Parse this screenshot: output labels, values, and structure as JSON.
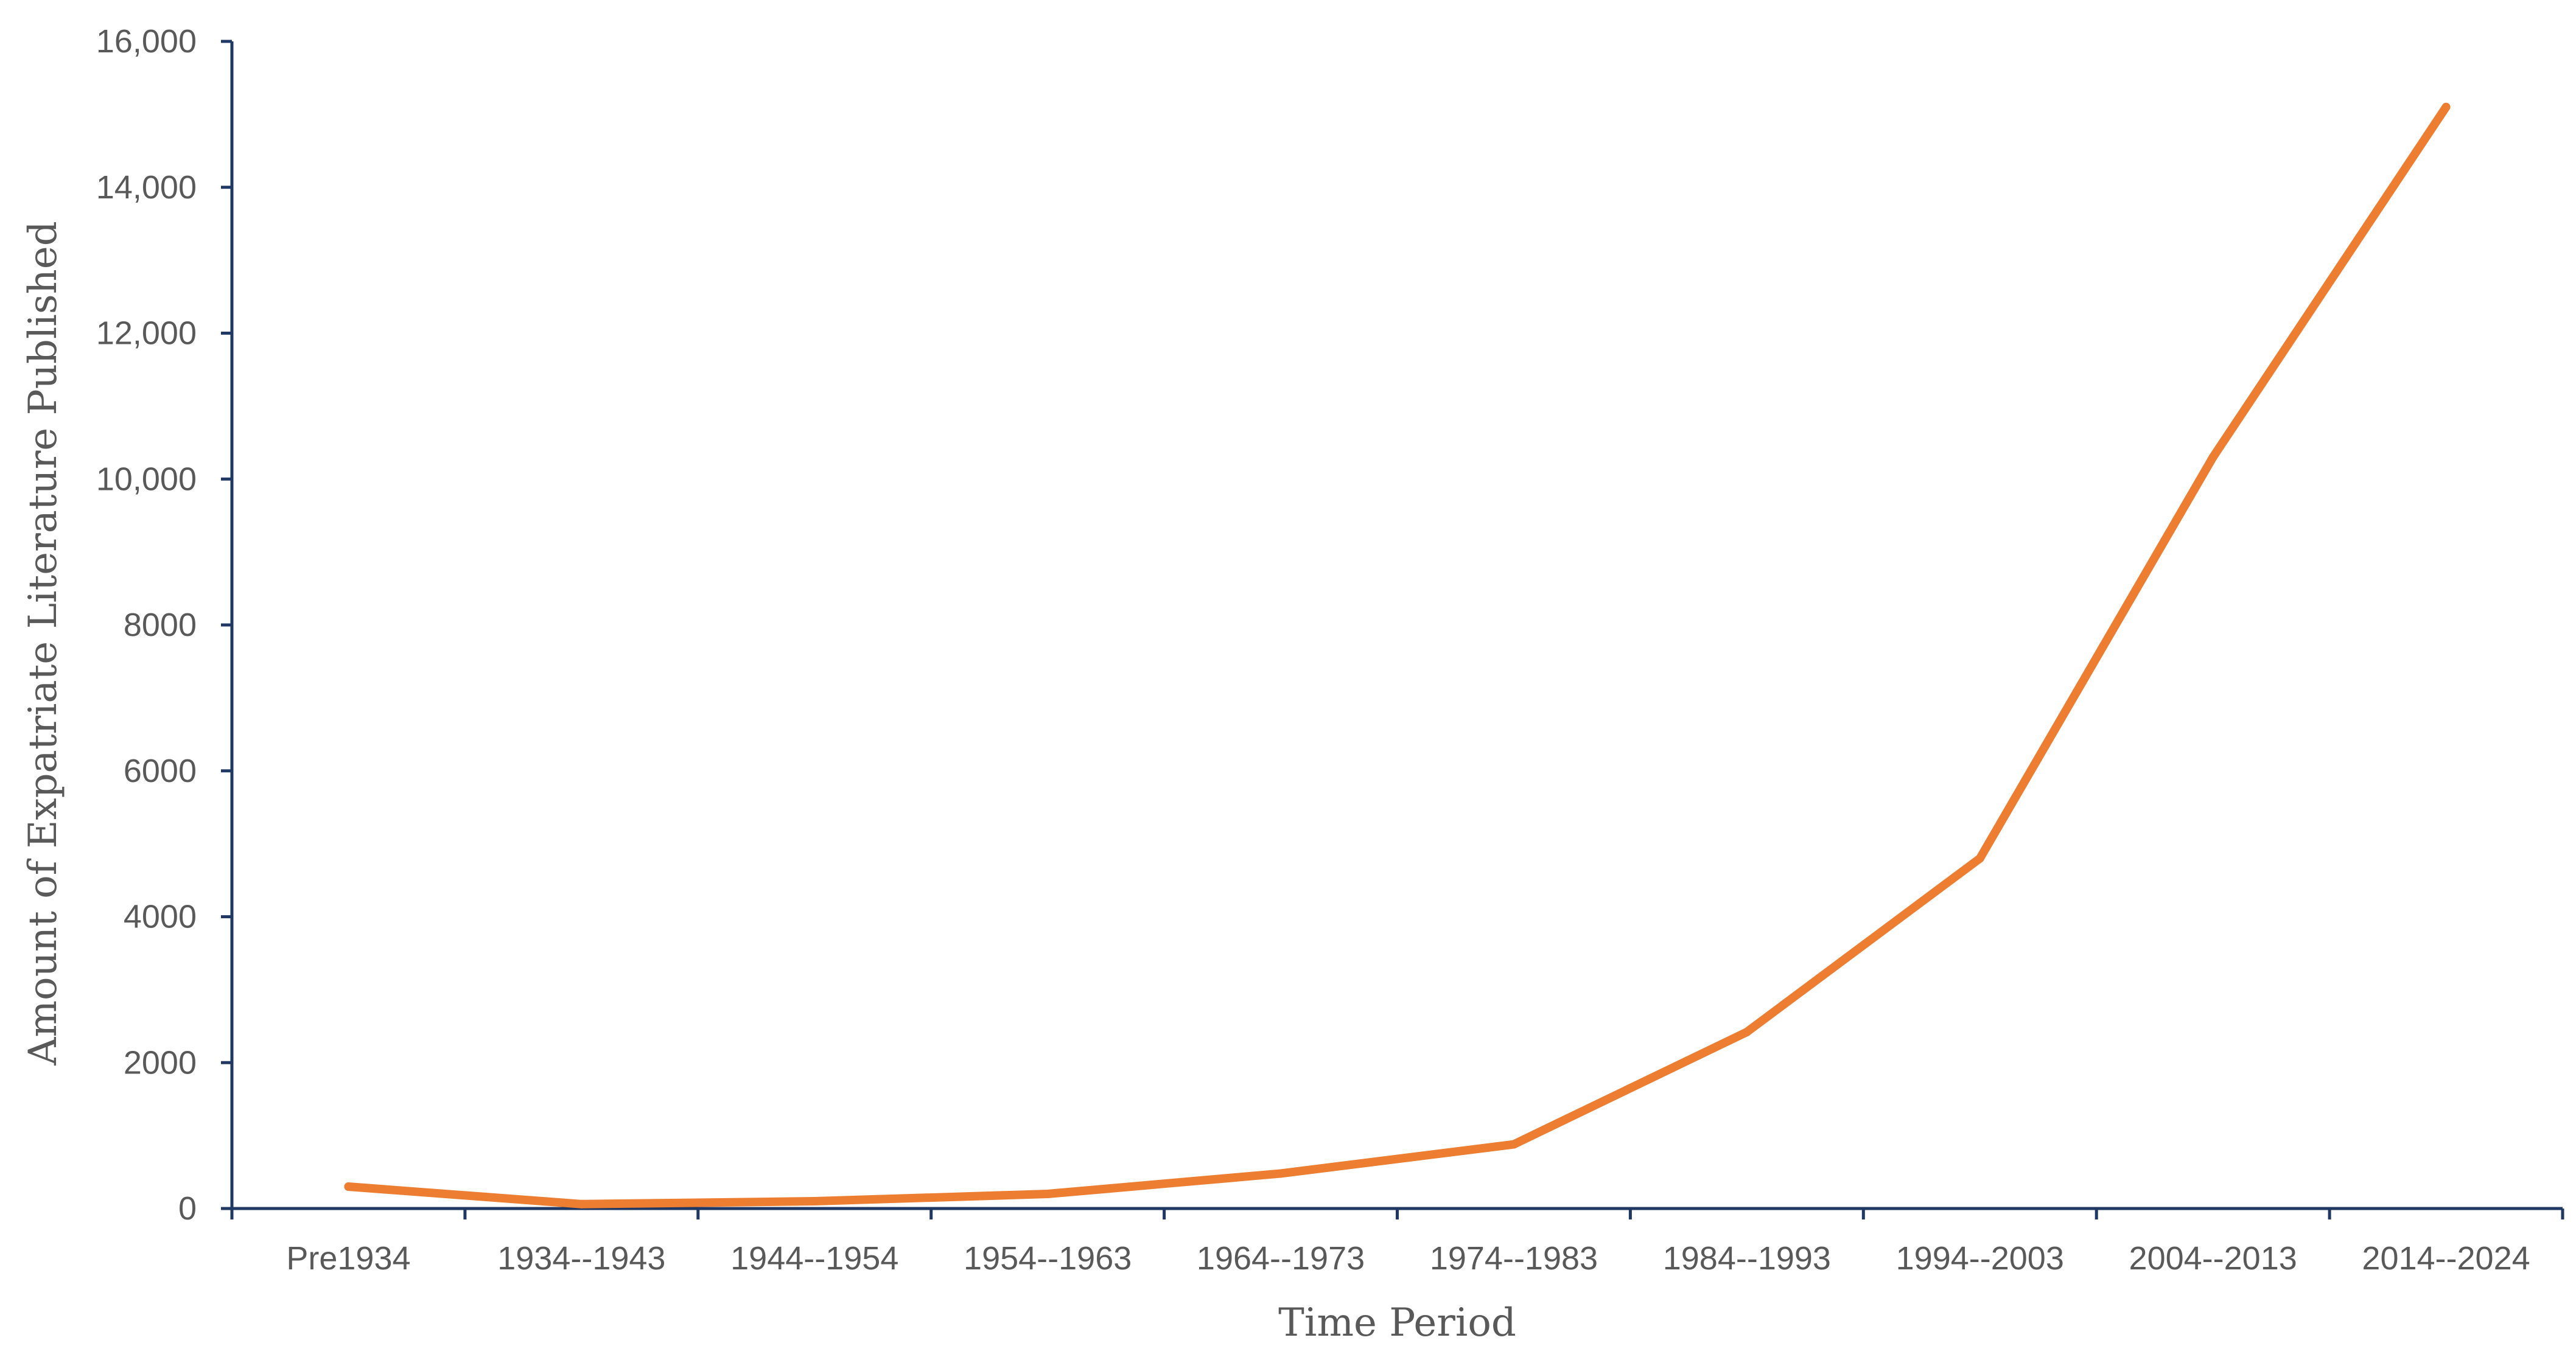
{
  "chart_data": {
    "type": "line",
    "title": "",
    "xlabel": "Time Period",
    "ylabel": "Amount of Expatriate Literature Published",
    "categories": [
      "Pre1934",
      "1934--1943",
      "1944--1954",
      "1954--1963",
      "1964--1973",
      "1974--1983",
      "1984--1993",
      "1994--2003",
      "2004--2013",
      "2014--2024"
    ],
    "y_ticks": [
      0,
      2000,
      4000,
      6000,
      8000,
      10000,
      12000,
      14000,
      16000
    ],
    "y_tick_labels": [
      "0",
      "2000",
      "4000",
      "6000",
      "8000",
      "10,000",
      "12,000",
      "14,000",
      "16,000"
    ],
    "ylim": [
      0,
      16000
    ],
    "grid": false,
    "legend": "none",
    "series": [
      {
        "values": [
          300,
          60,
          100,
          200,
          480,
          880,
          2420,
          4800,
          10300,
          15100
        ],
        "color": "#ed7d31"
      }
    ],
    "axis_color": "#1f3864"
  }
}
